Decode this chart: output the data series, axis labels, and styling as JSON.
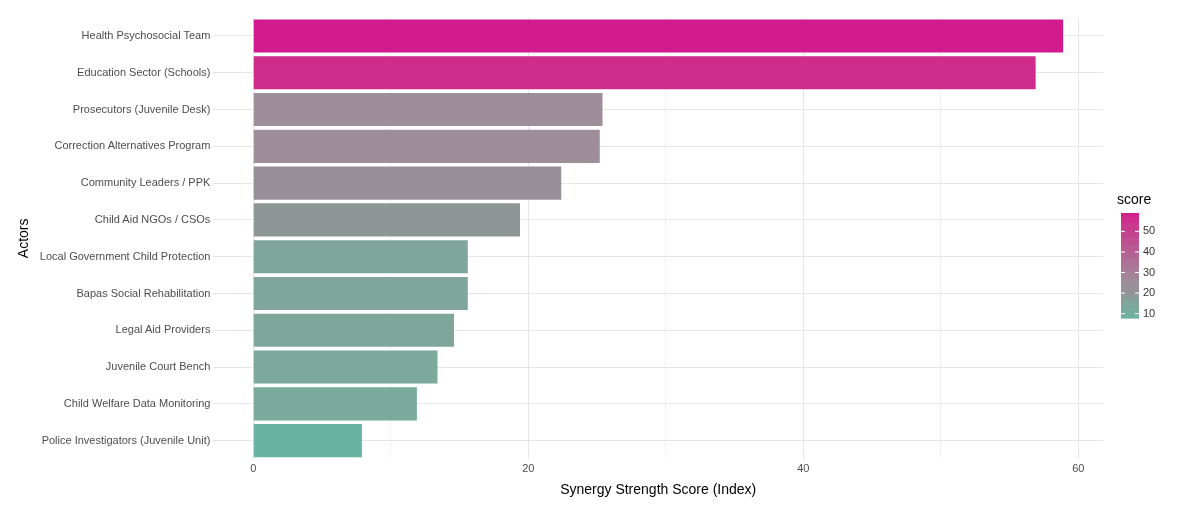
{
  "chart_data": {
    "type": "bar",
    "orientation": "horizontal",
    "xlabel": "Synergy Strength Score (Index)",
    "ylabel": "Actors",
    "clabel": "score",
    "categories": [
      "Health Psychosocial Team",
      "Education Sector (Schools)",
      "Prosecutors (Juvenile Desk)",
      "Correction Alternatives Program",
      "Community Leaders / PPK",
      "Child Aid NGOs / CSOs",
      "Local Government Child Protection",
      "Bapas Social Rehabilitation",
      "Legal Aid Providers",
      "Juvenile Court Bench",
      "Child Welfare Data Monitoring",
      "Police Investigators (Juvenile Unit)"
    ],
    "values": [
      58.9,
      56.9,
      25.4,
      25.2,
      22.4,
      19.4,
      15.6,
      15.6,
      14.6,
      13.4,
      11.9,
      7.9
    ],
    "colors": [
      "#d21a8c",
      "#cf2b8b",
      "#9e8e99",
      "#9d8e99",
      "#978f98",
      "#8f9796",
      "#80a59c",
      "#80a59c",
      "#7ea69b",
      "#7da89c",
      "#79aa9c",
      "#68b3a1"
    ],
    "xlim": [
      -2.9,
      61.8
    ],
    "xticks": [
      0,
      {
        "value": 10,
        "label": null
      },
      20,
      {
        "value": 30,
        "label": null
      },
      40,
      {
        "value": 50,
        "label": null
      },
      60
    ],
    "clim": [
      7.9,
      58.9
    ],
    "cticks": [
      10,
      20,
      30,
      40,
      50
    ],
    "grid": true,
    "legend": false
  }
}
